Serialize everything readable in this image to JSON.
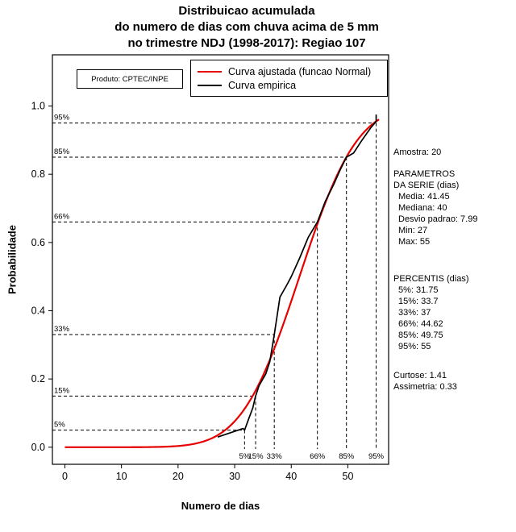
{
  "title": {
    "line1": "Distribuicao acumulada",
    "line2": "do numero de dias com chuva acima de 5 mm",
    "line3": "no trimestre NDJ (1998-2017): Regiao 107"
  },
  "product_box": {
    "label": "Produto: CPTEC/INPE"
  },
  "legend": {
    "items": [
      {
        "label": "Curva ajustada (funcao Normal)",
        "color": "#e60000"
      },
      {
        "label": "Curva empirica",
        "color": "#000000"
      }
    ]
  },
  "axes": {
    "x_label": "Numero de dias",
    "y_label": "Probabilidade"
  },
  "stats_panel": {
    "sample": "Amostra: 20",
    "params_title_line1": "PARAMETROS",
    "params_title_line2": "DA SERIE (dias)",
    "params": [
      "Media: 41.45",
      "Mediana: 40",
      "Desvio padrao: 7.99",
      "Min: 27",
      "Max: 55"
    ],
    "percentiles_title": "PERCENTIS (dias)",
    "percentiles": [
      "5%: 31.75",
      "15%: 33.7",
      "33%: 37",
      "66%: 44.62",
      "85%: 49.75",
      "95%: 55"
    ],
    "kurtosis": "Curtose: 1.41",
    "skewness": "Assimetria: 0.33"
  },
  "chart_data": {
    "type": "line",
    "title": "Distribuicao acumulada do numero de dias com chuva acima de 5 mm no trimestre NDJ (1998-2017): Regiao 107",
    "xlabel": "Numero de dias",
    "ylabel": "Probabilidade",
    "xlim": [
      -2.2,
      57.2
    ],
    "ylim": [
      -0.05,
      1.15
    ],
    "x_ticks": [
      0,
      10,
      20,
      30,
      40,
      50
    ],
    "x_tick_labels": [
      "0",
      "10",
      "20",
      "30",
      "40",
      "50"
    ],
    "y_ticks": [
      0,
      0.2,
      0.4,
      0.6,
      0.8,
      1.0
    ],
    "y_tick_labels": [
      "0.0",
      "0.2",
      "0.4",
      "0.6",
      "0.8",
      "1.0"
    ],
    "grid": false,
    "legend_position": "top-right-inside",
    "series": [
      {
        "name": "Curva ajustada (funcao Normal)",
        "kind": "normal_cdf",
        "color": "#e60000",
        "mean": 41.45,
        "sd": 7.99,
        "x_range": [
          0,
          55.5
        ]
      },
      {
        "name": "Curva empirica",
        "kind": "points",
        "color": "#000000",
        "points": [
          [
            27,
            0.03
          ],
          [
            31.5,
            0.055
          ],
          [
            31.75,
            0.05
          ],
          [
            32.3,
            0.075
          ],
          [
            33.2,
            0.115
          ],
          [
            33.7,
            0.15
          ],
          [
            34.3,
            0.18
          ],
          [
            35.5,
            0.215
          ],
          [
            36.2,
            0.25
          ],
          [
            37,
            0.33
          ],
          [
            38,
            0.44
          ],
          [
            39.2,
            0.475
          ],
          [
            40,
            0.5
          ],
          [
            41.5,
            0.555
          ],
          [
            43,
            0.615
          ],
          [
            44.62,
            0.66
          ],
          [
            46,
            0.72
          ],
          [
            47.5,
            0.77
          ],
          [
            48.7,
            0.815
          ],
          [
            49.75,
            0.85
          ],
          [
            51,
            0.862
          ],
          [
            52.5,
            0.9
          ],
          [
            54,
            0.935
          ],
          [
            55,
            0.955
          ],
          [
            55,
            0.975
          ]
        ]
      }
    ],
    "percentile_markers": [
      {
        "label": "5%",
        "p": 0.05,
        "x": 31.75
      },
      {
        "label": "15%",
        "p": 0.15,
        "x": 33.7
      },
      {
        "label": "33%",
        "p": 0.33,
        "x": 37
      },
      {
        "label": "66%",
        "p": 0.66,
        "x": 44.62
      },
      {
        "label": "85%",
        "p": 0.85,
        "x": 49.75
      },
      {
        "label": "95%",
        "p": 0.95,
        "x": 55
      }
    ],
    "sample_size": 20,
    "stats": {
      "media": 41.45,
      "mediana": 40,
      "desvio_padrao": 7.99,
      "min": 27,
      "max": 55,
      "curtose": 1.41,
      "assimetria": 0.33
    }
  }
}
